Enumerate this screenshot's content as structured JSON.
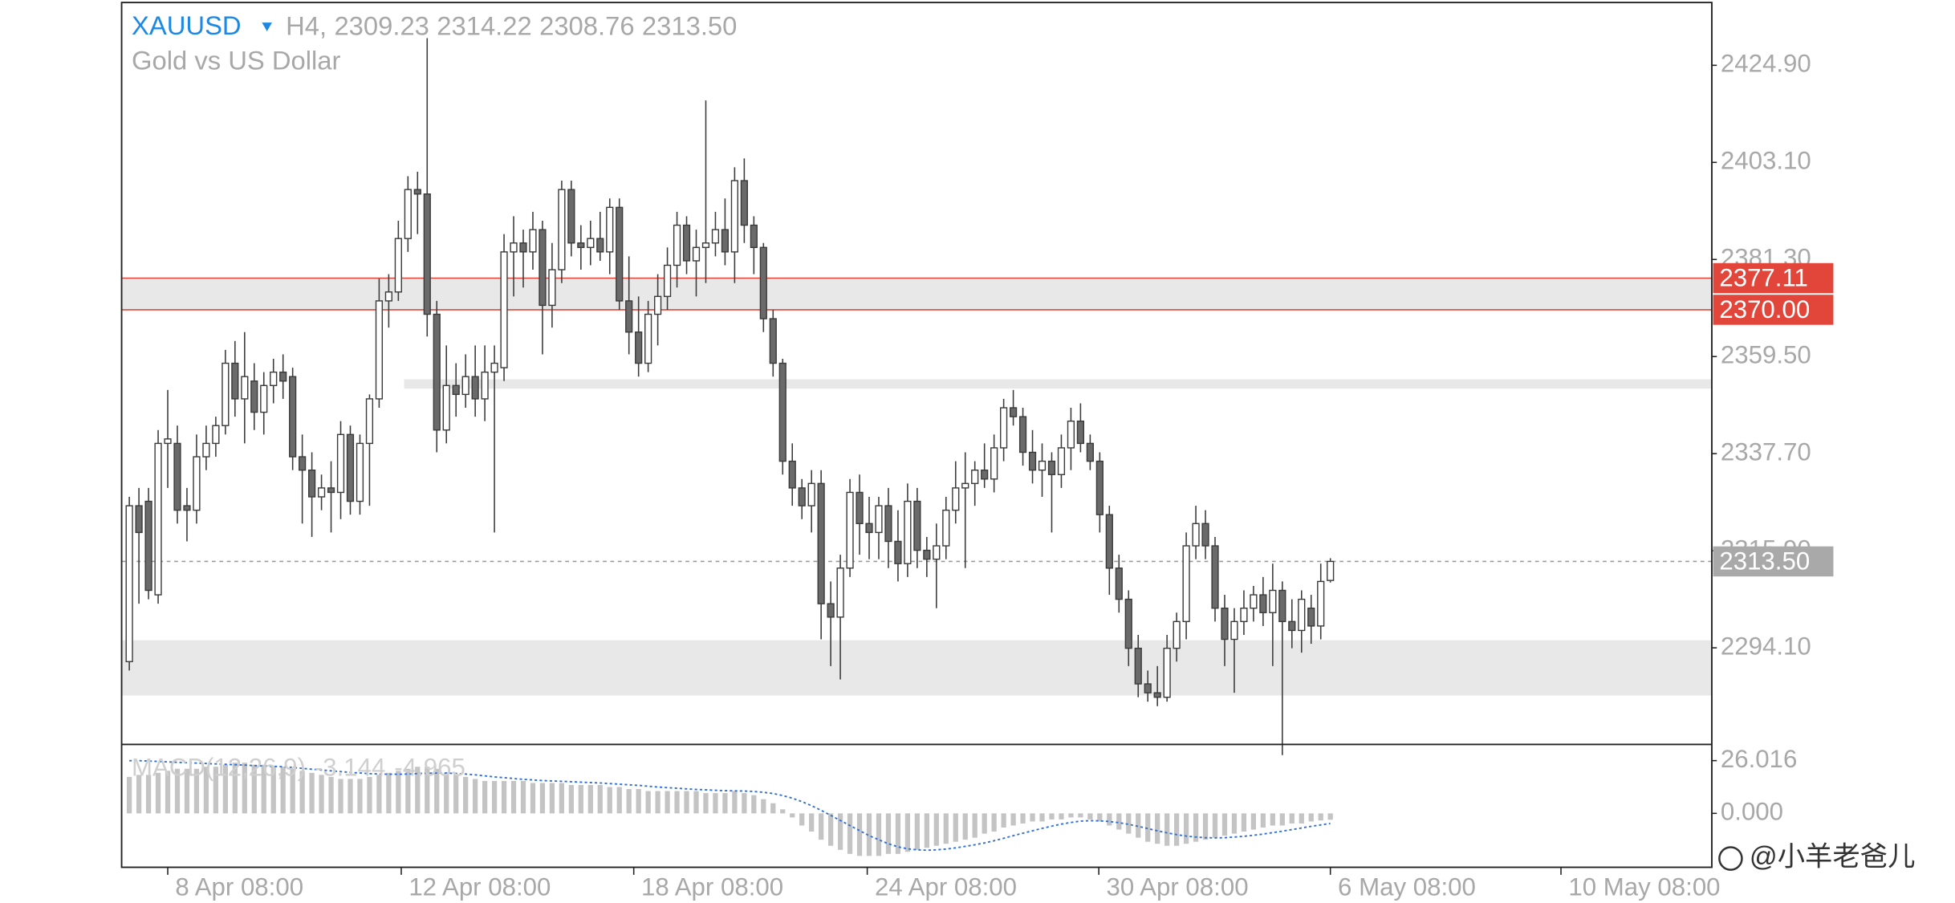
{
  "header": {
    "symbol": "XAUUSD",
    "period": "H4,",
    "quote": [
      2309.23,
      2314.22,
      2308.76,
      {
        "value": 2313.5,
        "label": "2313.50"
      }
    ],
    "description": "Gold vs US Dollar"
  },
  "chart_data": {
    "type": "candlestick",
    "candles": [
      [
        2291,
        2328,
        2289,
        2326
      ],
      [
        2326,
        2330,
        2304,
        2320
      ],
      [
        2327,
        2330,
        2305,
        2307
      ],
      [
        2306,
        2343,
        2304,
        2340
      ],
      [
        2340,
        2352,
        2330,
        2341
      ],
      [
        2340,
        2344,
        2322,
        2325
      ],
      [
        2326,
        2330,
        2318,
        2325
      ],
      [
        2325,
        2342,
        2322,
        2337
      ],
      [
        2337,
        2344,
        2334,
        2340
      ],
      [
        2340,
        2346,
        2337,
        2344
      ],
      [
        2344,
        2361,
        2342,
        2358
      ],
      [
        2358,
        2363,
        2346,
        2350
      ],
      [
        2350,
        2365,
        2340,
        2355
      ],
      [
        2354,
        2358,
        2343,
        2347
      ],
      [
        2347,
        2356,
        2342,
        2353
      ],
      [
        2353,
        2359,
        2349,
        2356
      ],
      [
        2356,
        2360,
        2350,
        2354
      ],
      [
        2355,
        2357,
        2334,
        2337
      ],
      [
        2337,
        2342,
        2322,
        2334
      ],
      [
        2334,
        2338,
        2319,
        2328
      ],
      [
        2328,
        2333,
        2325,
        2330
      ],
      [
        2330,
        2336,
        2320,
        2329
      ],
      [
        2329,
        2345,
        2323,
        2342
      ],
      [
        2342,
        2344,
        2324,
        2327
      ],
      [
        2327,
        2342,
        2324,
        2340
      ],
      [
        2340,
        2351,
        2326,
        2350
      ],
      [
        2350,
        2377,
        2348,
        2372
      ],
      [
        2372,
        2378,
        2366,
        2374
      ],
      [
        2374,
        2390,
        2372,
        2386
      ],
      [
        2386,
        2400,
        2383,
        2397
      ],
      [
        2397,
        2401,
        2387,
        2396
      ],
      [
        2396,
        2431,
        2364,
        2369
      ],
      [
        2369,
        2372,
        2338,
        2343
      ],
      [
        2343,
        2362,
        2340,
        2353
      ],
      [
        2353,
        2358,
        2346,
        2351
      ],
      [
        2351,
        2360,
        2348,
        2355
      ],
      [
        2355,
        2362,
        2346,
        2350
      ],
      [
        2350,
        2362,
        2345,
        2356
      ],
      [
        2356,
        2362,
        2320,
        2358
      ],
      [
        2357,
        2387,
        2354,
        2383
      ],
      [
        2383,
        2391,
        2373,
        2385
      ],
      [
        2385,
        2388,
        2375,
        2383
      ],
      [
        2383,
        2392,
        2379,
        2388
      ],
      [
        2388,
        2390,
        2360,
        2371
      ],
      [
        2371,
        2385,
        2366,
        2379
      ],
      [
        2379,
        2399,
        2376,
        2397
      ],
      [
        2397,
        2399,
        2382,
        2385
      ],
      [
        2385,
        2389,
        2379,
        2384
      ],
      [
        2384,
        2390,
        2380,
        2386
      ],
      [
        2386,
        2392,
        2381,
        2383
      ],
      [
        2383,
        2395,
        2378,
        2393
      ],
      [
        2393,
        2395,
        2370,
        2372
      ],
      [
        2372,
        2382,
        2360,
        2365
      ],
      [
        2365,
        2373,
        2355,
        2358
      ],
      [
        2358,
        2372,
        2356,
        2369
      ],
      [
        2369,
        2378,
        2362,
        2373
      ],
      [
        2373,
        2384,
        2370,
        2380
      ],
      [
        2380,
        2392,
        2375,
        2389
      ],
      [
        2389,
        2391,
        2378,
        2381
      ],
      [
        2381,
        2388,
        2373,
        2384
      ],
      [
        2384,
        2417,
        2376,
        2385
      ],
      [
        2385,
        2392,
        2382,
        2388
      ],
      [
        2388,
        2395,
        2380,
        2383
      ],
      [
        2383,
        2402,
        2376,
        2399
      ],
      [
        2399,
        2404,
        2385,
        2389
      ],
      [
        2389,
        2391,
        2378,
        2384
      ],
      [
        2384,
        2385,
        2365,
        2368
      ],
      [
        2368,
        2370,
        2355,
        2358
      ],
      [
        2358,
        2359,
        2333,
        2336
      ],
      [
        2336,
        2340,
        2326,
        2330
      ],
      [
        2330,
        2332,
        2323,
        2326
      ],
      [
        2326,
        2334,
        2320,
        2331
      ],
      [
        2331,
        2334,
        2296,
        2304
      ],
      [
        2304,
        2309,
        2290,
        2301
      ],
      [
        2301,
        2315,
        2287,
        2312
      ],
      [
        2312,
        2332,
        2310,
        2329
      ],
      [
        2329,
        2333,
        2315,
        2322
      ],
      [
        2322,
        2328,
        2314,
        2320
      ],
      [
        2320,
        2328,
        2314,
        2326
      ],
      [
        2326,
        2330,
        2312,
        2318
      ],
      [
        2318,
        2325,
        2309,
        2313
      ],
      [
        2313,
        2331,
        2310,
        2327
      ],
      [
        2327,
        2330,
        2312,
        2316
      ],
      [
        2316,
        2319,
        2310,
        2314
      ],
      [
        2314,
        2322,
        2303,
        2317
      ],
      [
        2317,
        2328,
        2314,
        2325
      ],
      [
        2325,
        2336,
        2322,
        2330
      ],
      [
        2330,
        2338,
        2312,
        2331
      ],
      [
        2331,
        2336,
        2326,
        2334
      ],
      [
        2334,
        2340,
        2330,
        2332
      ],
      [
        2332,
        2342,
        2329,
        2339
      ],
      [
        2339,
        2350,
        2336,
        2348
      ],
      [
        2348,
        2352,
        2344,
        2346
      ],
      [
        2346,
        2348,
        2335,
        2338
      ],
      [
        2338,
        2343,
        2331,
        2334
      ],
      [
        2334,
        2340,
        2328,
        2336
      ],
      [
        2336,
        2338,
        2320,
        2333
      ],
      [
        2333,
        2342,
        2330,
        2339
      ],
      [
        2339,
        2348,
        2334,
        2345
      ],
      [
        2345,
        2349,
        2338,
        2340
      ],
      [
        2340,
        2342,
        2334,
        2336
      ],
      [
        2336,
        2338,
        2320,
        2324
      ],
      [
        2324,
        2326,
        2306,
        2312
      ],
      [
        2312,
        2315,
        2302,
        2305
      ],
      [
        2305,
        2307,
        2290,
        2294
      ],
      [
        2294,
        2297,
        2283,
        2286
      ],
      [
        2286,
        2289,
        2282,
        2284
      ],
      [
        2284,
        2290,
        2281,
        2283
      ],
      [
        2283,
        2297,
        2282,
        2294
      ],
      [
        2294,
        2302,
        2291,
        2300
      ],
      [
        2300,
        2320,
        2296,
        2317
      ],
      [
        2317,
        2326,
        2314,
        2322
      ],
      [
        2322,
        2325,
        2314,
        2317
      ],
      [
        2317,
        2319,
        2300,
        2303
      ],
      [
        2303,
        2306,
        2290,
        2296
      ],
      [
        2296,
        2303,
        2284,
        2300
      ],
      [
        2300,
        2307,
        2297,
        2303
      ],
      [
        2303,
        2308,
        2300,
        2306
      ],
      [
        2306,
        2310,
        2299,
        2302
      ],
      [
        2302,
        2313,
        2290,
        2307
      ],
      [
        2307,
        2309,
        2270,
        2300
      ],
      [
        2300,
        2305,
        2294,
        2298
      ],
      [
        2298,
        2307,
        2293,
        2305
      ],
      [
        2303,
        2306,
        2295,
        2299
      ],
      [
        2299,
        2313,
        2296,
        2309
      ],
      [
        2309.23,
        2314.22,
        2308.76,
        2313.5
      ]
    ],
    "colors": {
      "up": "#ffffff",
      "down": "#6a6a6a",
      "outline": "#3a3a3a"
    },
    "ylim": [
      2272.4,
      2439.0
    ],
    "yticks": [
      {
        "value": 2424.9,
        "label": "2424.90"
      },
      {
        "value": 2403.1,
        "label": "2403.10"
      },
      {
        "value": 2381.3,
        "label": "2381.30"
      },
      {
        "value": 2359.5,
        "label": "2359.50"
      },
      {
        "value": 2337.7,
        "label": "2337.70"
      },
      {
        "value": 2315.9,
        "label": "2315.90"
      },
      {
        "value": 2294.1,
        "label": "2294.10"
      }
    ],
    "xlim": [
      -0.8,
      164.7
    ],
    "xticks": [
      {
        "value": 4,
        "label": "8 Apr 08:00"
      },
      {
        "value": 28.3,
        "label": "12 Apr 08:00"
      },
      {
        "value": 52.5,
        "label": "18 Apr 08:00"
      },
      {
        "value": 76.8,
        "label": "24 Apr 08:00"
      },
      {
        "value": 100.9,
        "label": "30 Apr 08:00"
      },
      {
        "value": 125,
        "label": "6 May 08:00"
      },
      {
        "value": 149,
        "label": "10 May 08:00"
      }
    ],
    "levels": [
      2377.11,
      {
        "value": 2370,
        "label": "2370.00"
      }
    ],
    "level_color": "#e2463a",
    "zones": [
      {
        "low": 2352.3,
        "high": 2354.4,
        "from": 28.6
      },
      {
        "low": 2283.4,
        "high": 2295.8
      }
    ],
    "zone_color": "#e8e8e8",
    "current_price": {
      "value": 2313.5,
      "label": "2313.50"
    },
    "macd": {
      "name": "MACD(12,26,9)",
      "ylim": [
        -26.6,
        34.0
      ],
      "yticks": [
        {
          "value": 26.016,
          "label": "26.016"
        },
        {
          "value": 0,
          "label": "0.000"
        }
      ],
      "histogram_color": "#c4c4c4",
      "signal_color": "#2f6fd6",
      "histogram": [
        18,
        19,
        19,
        20,
        21,
        22,
        22,
        22,
        23,
        23,
        24,
        25,
        25,
        24,
        24,
        23,
        23,
        22,
        21,
        20,
        19,
        18,
        17,
        17,
        17,
        18,
        19,
        20,
        21,
        22,
        23,
        23,
        22,
        20,
        19,
        18,
        17,
        16,
        16,
        16,
        16,
        16,
        15,
        15,
        15,
        15,
        14,
        14,
        14,
        14,
        13,
        13,
        12,
        12,
        11,
        11,
        11,
        11,
        11,
        11,
        10,
        10,
        10,
        11,
        10,
        9,
        7,
        5,
        2,
        -2,
        -6,
        -9,
        -13,
        -16,
        -18,
        -20,
        -21,
        -21,
        -21,
        -20,
        -20,
        -19,
        -18,
        -17,
        -16,
        -15,
        -14,
        -13,
        -12,
        -10,
        -9,
        -7,
        -6,
        -5,
        -4,
        -4,
        -3,
        -3,
        -2,
        -2,
        -3,
        -4,
        -6,
        -8,
        -10,
        -12,
        -14,
        -15,
        -16,
        -16,
        -15,
        -14,
        -13,
        -12,
        -11,
        -10,
        -9,
        -8,
        -7,
        -6,
        -6,
        -5,
        -5,
        -4,
        -3.5,
        -3.144
      ],
      "signal": [
        26,
        26,
        25.8,
        25.6,
        25.4,
        25.2,
        25,
        24.8,
        24.6,
        24.4,
        24.2,
        24,
        23.8,
        23.6,
        23.4,
        23.2,
        23,
        22.6,
        22.2,
        21.8,
        21.4,
        21,
        20.6,
        20.2,
        19.9,
        19.6,
        19.4,
        19.3,
        19.3,
        19.4,
        19.6,
        19.8,
        19.9,
        19.9,
        19.7,
        19.4,
        19,
        18.5,
        18,
        17.6,
        17.2,
        16.8,
        16.5,
        16.2,
        16,
        15.8,
        15.6,
        15.4,
        15.2,
        15,
        14.7,
        14.4,
        14.1,
        13.8,
        13.4,
        13,
        12.7,
        12.4,
        12.1,
        11.8,
        11.6,
        11.4,
        11.2,
        11.1,
        11,
        10.8,
        10.4,
        9.8,
        8.8,
        7.5,
        5.8,
        3.8,
        1.5,
        -1,
        -3.5,
        -6,
        -8.5,
        -11,
        -13,
        -15,
        -16.5,
        -17.5,
        -18,
        -18.2,
        -18,
        -17.6,
        -17,
        -16.3,
        -15.5,
        -14.6,
        -13.5,
        -12.3,
        -11,
        -9.8,
        -8.6,
        -7.4,
        -6.3,
        -5.3,
        -4.5,
        -3.8,
        -3.6,
        -3.7,
        -4,
        -4.6,
        -5.4,
        -6.4,
        -7.5,
        -8.6,
        -9.6,
        -10.5,
        -11.2,
        -11.7,
        -12,
        -12.1,
        -12,
        -11.7,
        -11.3,
        -10.8,
        -10.2,
        -9.5,
        -8.8,
        -8,
        -7.2,
        -6.4,
        -5.7,
        -4.965
      ]
    }
  },
  "watermark": "@小羊老爸儿"
}
